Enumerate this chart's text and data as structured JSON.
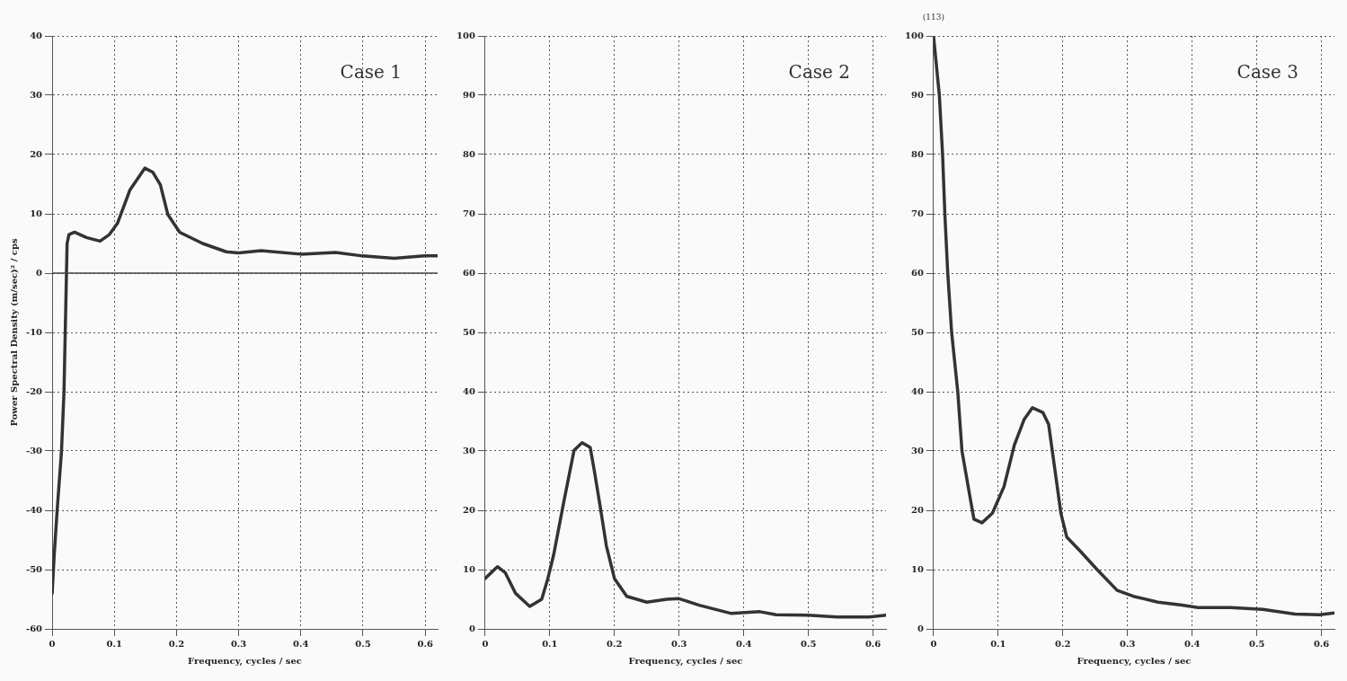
{
  "chart_data": [
    {
      "type": "line",
      "annotations": [
        "Case 1"
      ],
      "xlabel": "Frequency, cycles / sec",
      "ylabel": "Power Spectral Density (m/sec)² / cps",
      "xlim": [
        0,
        0.62
      ],
      "xticks": [
        0,
        0.1,
        0.2,
        0.3,
        0.4,
        0.5,
        0.6
      ],
      "ylim": [
        -60,
        40
      ],
      "yticks": [
        -60,
        -50,
        -40,
        -30,
        -20,
        -10,
        0,
        10,
        20,
        30,
        40
      ],
      "grid": true,
      "legend": false,
      "marker": "none",
      "line_style": "solid",
      "ref_lines": [
        {
          "axis": "y",
          "value": 0,
          "color": "#444444"
        }
      ],
      "series": [
        {
          "color": "#333333",
          "x": [
            0,
            0.003,
            0.008,
            0.015,
            0.019,
            0.021,
            0.023,
            0.024,
            0.027,
            0.036,
            0.055,
            0.077,
            0.092,
            0.105,
            0.125,
            0.149,
            0.162,
            0.174,
            0.186,
            0.205,
            0.242,
            0.28,
            0.3,
            0.336,
            0.4,
            0.456,
            0.499,
            0.55,
            0.599,
            0.62
          ],
          "values": [
            -54,
            -48,
            -40,
            -30,
            -20,
            -10,
            0,
            5,
            6.5,
            6.9,
            6,
            5.4,
            6.5,
            8.4,
            14,
            17.7,
            17,
            14.9,
            9.9,
            6.9,
            5,
            3.6,
            3.4,
            3.8,
            3.2,
            3.5,
            2.9,
            2.5,
            2.9,
            2.9
          ]
        }
      ]
    },
    {
      "type": "line",
      "annotations": [
        "Case 2"
      ],
      "xlabel": "Frequency, cycles / sec",
      "xlim": [
        0,
        0.62
      ],
      "xticks": [
        0,
        0.1,
        0.2,
        0.3,
        0.4,
        0.5,
        0.6
      ],
      "ylim": [
        0,
        100
      ],
      "yticks": [
        0,
        10,
        20,
        30,
        40,
        50,
        60,
        70,
        80,
        90,
        100
      ],
      "grid": true,
      "legend": false,
      "marker": "none",
      "line_style": "solid",
      "series": [
        {
          "color": "#333333",
          "x": [
            0,
            0.019,
            0.031,
            0.047,
            0.069,
            0.0875,
            0.097,
            0.106,
            0.122,
            0.1375,
            0.15,
            0.1625,
            0.169,
            0.178,
            0.1875,
            0.2,
            0.219,
            0.25,
            0.281,
            0.3,
            0.331,
            0.381,
            0.425,
            0.45,
            0.5,
            0.544,
            0.594,
            0.62
          ],
          "values": [
            8.5,
            10.5,
            9.5,
            6,
            3.8,
            5,
            8.5,
            12.5,
            21.6,
            30.1,
            31.4,
            30.6,
            26.6,
            20.6,
            14,
            8.5,
            5.5,
            4.5,
            5,
            5.1,
            4,
            2.6,
            2.9,
            2.4,
            2.3,
            2,
            2,
            2.3
          ]
        }
      ]
    },
    {
      "type": "line",
      "annotations": [
        "Case 3",
        {
          "text": "(113)",
          "x": 0,
          "y": 100
        }
      ],
      "xlabel": "Frequency, cycles / sec",
      "xlim": [
        0,
        0.62
      ],
      "xticks": [
        0,
        0.1,
        0.2,
        0.3,
        0.4,
        0.5,
        0.6
      ],
      "ylim": [
        0,
        100
      ],
      "yticks": [
        0,
        10,
        20,
        30,
        40,
        50,
        60,
        70,
        80,
        90,
        100
      ],
      "grid": true,
      "legend": false,
      "marker": "none",
      "line_style": "solid",
      "series": [
        {
          "color": "#333333",
          "x": [
            0,
            0.009,
            0.014,
            0.0175,
            0.022,
            0.028,
            0.0375,
            0.044,
            0.056,
            0.0625,
            0.075,
            0.091,
            0.109,
            0.125,
            0.14,
            0.153,
            0.169,
            0.178,
            0.1875,
            0.197,
            0.206,
            0.228,
            0.253,
            0.284,
            0.309,
            0.347,
            0.384,
            0.409,
            0.459,
            0.509,
            0.559,
            0.597,
            0.62
          ],
          "values": [
            100,
            90,
            80,
            70,
            60,
            50,
            40,
            30,
            22.5,
            18.5,
            17.9,
            19.5,
            24,
            31,
            35.3,
            37.3,
            36.5,
            34.5,
            27,
            19.5,
            15.5,
            13,
            10,
            6.5,
            5.5,
            4.5,
            4,
            3.6,
            3.6,
            3.3,
            2.5,
            2.4,
            2.7
          ]
        }
      ]
    }
  ]
}
